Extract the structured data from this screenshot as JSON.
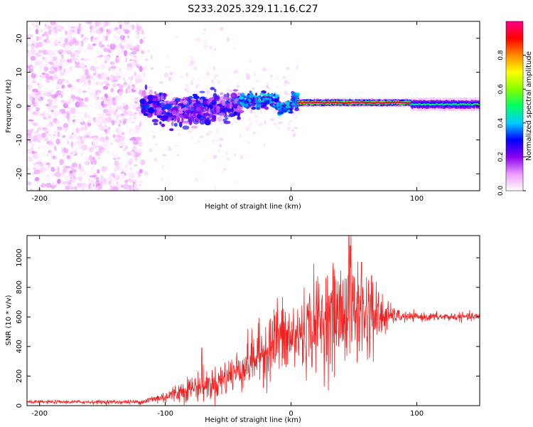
{
  "figure_title": "S233.2025.329.11.16.C27",
  "chart_data": [
    {
      "type": "heatmap",
      "title": "S233.2025.329.11.16.C27",
      "xlabel": "Height of straight line (km)",
      "ylabel": "Frequency (Hz)",
      "xlim": [
        -210,
        150
      ],
      "ylim": [
        -25,
        25
      ],
      "xticks": [
        -200,
        -100,
        0,
        100
      ],
      "xtick_labels": [
        "-200",
        "-100",
        "0",
        "100"
      ],
      "yticks": [
        -20,
        -10,
        0,
        10,
        20
      ],
      "ytick_labels": [
        "-20",
        "-10",
        "0",
        "10",
        "20"
      ],
      "colorbar": {
        "label": "Normalized spectral amplitude",
        "range": [
          0,
          1
        ],
        "ticks": [
          0.0,
          0.2,
          0.4,
          0.6,
          0.8
        ],
        "tick_labels": [
          "0.0",
          "0.2",
          "0.4",
          "0.6",
          "0.8"
        ],
        "colormap": [
          "#ffffff",
          "#ee99ff",
          "#8800ee",
          "#0000ff",
          "#00ccff",
          "#00ff66",
          "#88ff00",
          "#ffff00",
          "#ff8800",
          "#ff0000",
          "#ff0088"
        ]
      },
      "regions": [
        {
          "name": "noise-scatter",
          "x_range": [
            -210,
            -118
          ],
          "freq_range": [
            -25,
            25
          ],
          "amplitude": [
            0.0,
            0.12
          ]
        },
        {
          "name": "onset-cluster",
          "x_range": [
            -118,
            -40
          ],
          "freq_range": [
            -6,
            6
          ],
          "amplitude": [
            0.1,
            0.35
          ]
        },
        {
          "name": "transition",
          "x_range": [
            -40,
            5
          ],
          "freq_range": [
            -3,
            4
          ],
          "amplitude": [
            0.2,
            0.45
          ]
        },
        {
          "name": "strong-band",
          "x_range": [
            5,
            95
          ],
          "freq_center": 1.0,
          "freq_halfwidth": 0.8,
          "amplitude": [
            0.7,
            0.95
          ]
        },
        {
          "name": "steady-band",
          "x_range": [
            95,
            150
          ],
          "freq_center": 0.5,
          "freq_halfwidth": 1.2,
          "amplitude": [
            0.3,
            0.5
          ]
        }
      ]
    },
    {
      "type": "line",
      "xlabel": "Height of straight line (km)",
      "ylabel": "SNR (10 * v/v)",
      "color": "#ee2222",
      "xlim": [
        -210,
        150
      ],
      "ylim": [
        0,
        1150
      ],
      "xticks": [
        -200,
        -100,
        0,
        100
      ],
      "xtick_labels": [
        "-200",
        "-100",
        "0",
        "100"
      ],
      "yticks": [
        0,
        200,
        400,
        600,
        800,
        1000
      ],
      "ytick_labels": [
        "0",
        "200",
        "400",
        "600",
        "800",
        "1000"
      ],
      "envelope": {
        "x": [
          -210,
          -120,
          -100,
          -80,
          -60,
          -40,
          -20,
          -10,
          0,
          10,
          20,
          30,
          40,
          50,
          60,
          70,
          80,
          90,
          100,
          110,
          120,
          130,
          140,
          150
        ],
        "center": [
          25,
          25,
          60,
          120,
          150,
          250,
          380,
          450,
          450,
          500,
          560,
          600,
          620,
          640,
          620,
          600,
          610,
          600,
          600,
          600,
          600,
          600,
          600,
          600
        ],
        "spread": [
          10,
          15,
          45,
          90,
          110,
          150,
          220,
          260,
          260,
          280,
          320,
          330,
          360,
          380,
          320,
          200,
          60,
          35,
          28,
          28,
          28,
          28,
          28,
          28
        ]
      },
      "peaks": [
        {
          "x": 46,
          "y": 1150
        },
        {
          "x": 47,
          "y": 1080
        },
        {
          "x": 56,
          "y": 970
        },
        {
          "x": 64,
          "y": 880
        },
        {
          "x": -71,
          "y": 390
        },
        {
          "x": -11,
          "y": 730
        }
      ]
    }
  ]
}
